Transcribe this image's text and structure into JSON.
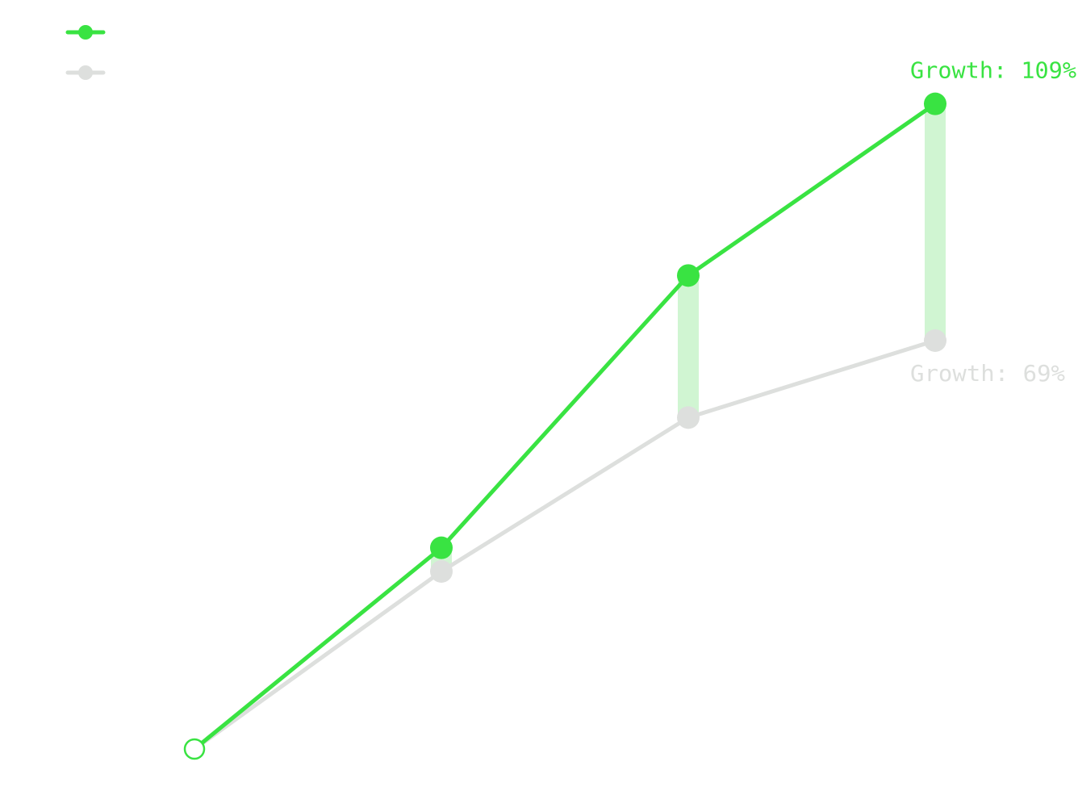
{
  "chart_data": {
    "type": "line",
    "title": "",
    "xlabel": "",
    "ylabel": "",
    "grid": false,
    "legend_position": "top-left",
    "colors": {
      "primary": "#39e342",
      "secondary": "#dddfdd",
      "gap_band": "#d0f5d2"
    },
    "x": [
      0,
      1,
      2,
      3
    ],
    "ylim": [
      0,
      120
    ],
    "series": [
      {
        "values": [
          0,
          34,
          80,
          109
        ]
      },
      {
        "values": [
          0,
          30,
          56,
          69
        ]
      }
    ],
    "annotations": {
      "primary_end": "Growth: 109%",
      "secondary_end": "Growth: 69%"
    }
  }
}
